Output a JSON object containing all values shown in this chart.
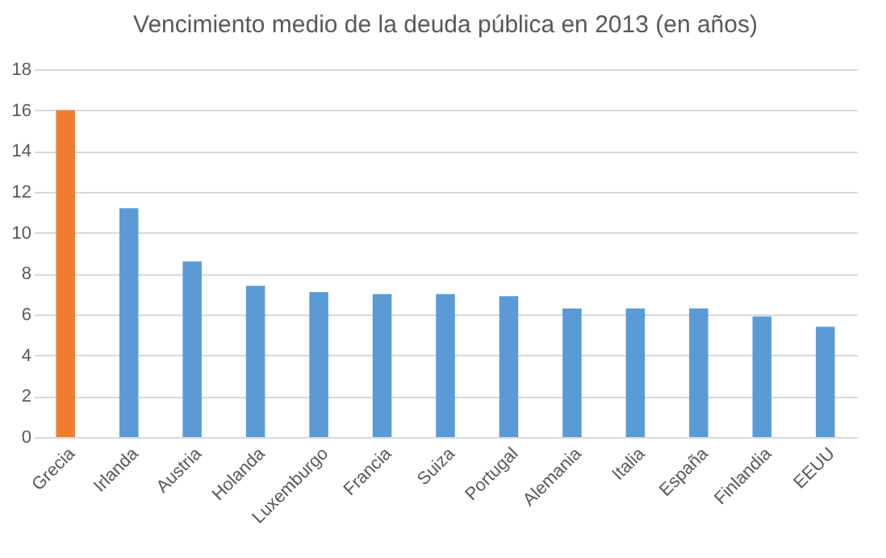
{
  "chart_data": {
    "type": "bar",
    "title": "Vencimiento medio de la deuda pública en 2013 (en años)",
    "categories": [
      "Grecia",
      "Irlanda",
      "Austria",
      "Holanda",
      "Luxemburgo",
      "Francia",
      "Suiza",
      "Portugal",
      "Alemania",
      "Italia",
      "España",
      "Finlandia",
      "EEUU"
    ],
    "values": [
      16,
      11.2,
      8.6,
      7.4,
      7.1,
      7.0,
      7.0,
      6.9,
      6.3,
      6.3,
      6.3,
      5.9,
      5.4
    ],
    "colors": [
      "#ed7d31",
      "#5b9bd5",
      "#5b9bd5",
      "#5b9bd5",
      "#5b9bd5",
      "#5b9bd5",
      "#5b9bd5",
      "#5b9bd5",
      "#5b9bd5",
      "#5b9bd5",
      "#5b9bd5",
      "#5b9bd5",
      "#5b9bd5"
    ],
    "ylim": [
      0,
      18
    ],
    "yticks": [
      0,
      2,
      4,
      6,
      8,
      10,
      12,
      14,
      16,
      18
    ],
    "grid": "y"
  }
}
